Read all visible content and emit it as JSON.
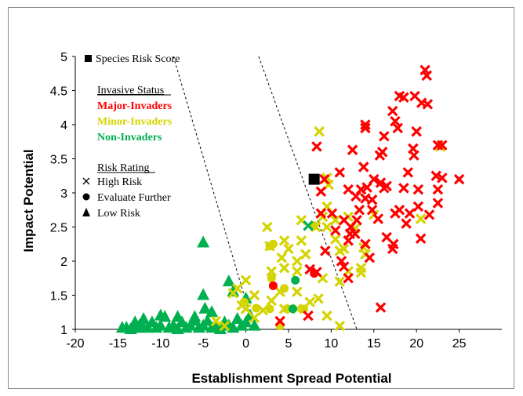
{
  "chart_data": {
    "type": "scatter",
    "title": "",
    "xlabel": "Establishment Spread Potential",
    "ylabel": "Impact Potential",
    "xlim": [
      -20,
      30
    ],
    "ylim": [
      1,
      5
    ],
    "xticks": [
      "-20",
      "-15",
      "-10",
      "-5",
      "0",
      "5",
      "10",
      "15",
      "20",
      "25"
    ],
    "yticks": [
      "1",
      "1.5",
      "2",
      "2.5",
      "3",
      "3.5",
      "4",
      "4.5",
      "5"
    ],
    "grid": false,
    "colors": {
      "major": "#ff0000",
      "minor": "#d4d400",
      "non": "#00b050",
      "black": "#000000"
    },
    "legend": {
      "species_risk_score": "Species Risk Score",
      "status_title": "Invasive Status",
      "status": [
        {
          "label": "Major-Invaders",
          "color": "#ff0000"
        },
        {
          "label": "Minor-Invaders",
          "color": "#d4d400"
        },
        {
          "label": "Non-Invaders",
          "color": "#00b050"
        }
      ],
      "rating_title": "Risk Rating",
      "ratings": [
        {
          "label": "High Risk",
          "marker": "x"
        },
        {
          "label": "Evaluate Further",
          "marker": "circle"
        },
        {
          "label": "Low Risk",
          "marker": "triangle"
        }
      ]
    },
    "threshold_lines": [
      {
        "from": [
          -8.5,
          5
        ],
        "to": [
          0.5,
          1.2
        ]
      },
      {
        "from": [
          1.5,
          5
        ],
        "to": [
          13,
          1
        ]
      }
    ],
    "species_risk_score_point": [
      8,
      3.2
    ],
    "points": {
      "major_x": [
        [
          21,
          4.8
        ],
        [
          21.2,
          4.72
        ],
        [
          19.8,
          4.42
        ],
        [
          20.6,
          4.32
        ],
        [
          21.3,
          4.3
        ],
        [
          18,
          4.42
        ],
        [
          18.5,
          4.4
        ],
        [
          17.2,
          4.2
        ],
        [
          17.5,
          4.05
        ],
        [
          14,
          4
        ],
        [
          14,
          3.95
        ],
        [
          16.2,
          3.83
        ],
        [
          17.8,
          3.95
        ],
        [
          20,
          3.9
        ],
        [
          19.6,
          3.65
        ],
        [
          19.7,
          3.55
        ],
        [
          22.5,
          3.7
        ],
        [
          23,
          3.7
        ],
        [
          12.5,
          3.63
        ],
        [
          15.7,
          3.55
        ],
        [
          16,
          3.6
        ],
        [
          13.8,
          3.38
        ],
        [
          8.3,
          3.68
        ],
        [
          11,
          3.3
        ],
        [
          15,
          3.2
        ],
        [
          16.5,
          3.1
        ],
        [
          19,
          3.3
        ],
        [
          22.3,
          3.25
        ],
        [
          23,
          3.22
        ],
        [
          25,
          3.2
        ],
        [
          9.2,
          3.2
        ],
        [
          8.8,
          3.02
        ],
        [
          12,
          3.05
        ],
        [
          13.5,
          3.05
        ],
        [
          14.2,
          3.08
        ],
        [
          15.8,
          3.15
        ],
        [
          16.2,
          3.07
        ],
        [
          18.5,
          3.07
        ],
        [
          20.2,
          3.05
        ],
        [
          22.5,
          3.05
        ],
        [
          12.9,
          2.95
        ],
        [
          14,
          2.92
        ],
        [
          14.8,
          2.9
        ],
        [
          13.3,
          2.75
        ],
        [
          10.1,
          2.7
        ],
        [
          11.5,
          2.6
        ],
        [
          12.3,
          2.5
        ],
        [
          13,
          2.6
        ],
        [
          12.2,
          2.4
        ],
        [
          12.8,
          2.4
        ],
        [
          14.8,
          2.75
        ],
        [
          15.5,
          2.62
        ],
        [
          17.5,
          2.7
        ],
        [
          18,
          2.75
        ],
        [
          19.2,
          2.7
        ],
        [
          20.2,
          2.8
        ],
        [
          22.5,
          2.85
        ],
        [
          21.5,
          2.68
        ],
        [
          18.8,
          2.55
        ],
        [
          8.8,
          2.7
        ],
        [
          10.5,
          2.45
        ],
        [
          12,
          2.3
        ],
        [
          14,
          2.25
        ],
        [
          16.5,
          2.35
        ],
        [
          20.5,
          2.33
        ],
        [
          17.3,
          2.25
        ],
        [
          17.2,
          2.18
        ],
        [
          9.3,
          2.15
        ],
        [
          11.2,
          2.0
        ],
        [
          14.5,
          2.05
        ],
        [
          7.5,
          1.88
        ],
        [
          8.3,
          1.84
        ],
        [
          11.5,
          1.92
        ],
        [
          12,
          1.75
        ],
        [
          4,
          1.12
        ],
        [
          7.3,
          1.2
        ],
        [
          15.8,
          1.32
        ]
      ],
      "minor_x": [
        [
          -1.5,
          1.53
        ],
        [
          -1,
          1.6
        ],
        [
          1,
          1.5
        ],
        [
          2.5,
          2.5
        ],
        [
          2.8,
          2.22
        ],
        [
          4.5,
          2.3
        ],
        [
          4.2,
          2.05
        ],
        [
          5,
          2.18
        ],
        [
          3,
          1.85
        ],
        [
          4.5,
          1.9
        ],
        [
          4,
          1.55
        ],
        [
          3,
          1.42
        ],
        [
          4.5,
          1.3
        ],
        [
          6,
          1.3
        ],
        [
          6,
          1.55
        ],
        [
          6,
          1.85
        ],
        [
          6,
          2.0
        ],
        [
          6.5,
          2.3
        ],
        [
          7,
          2.1
        ],
        [
          6.5,
          2.6
        ],
        [
          8.2,
          2.5
        ],
        [
          9,
          2.65
        ],
        [
          10.5,
          2.6
        ],
        [
          9.5,
          2.8
        ],
        [
          9.5,
          2.5
        ],
        [
          9.5,
          3.22
        ],
        [
          9.7,
          3.12
        ],
        [
          8.6,
          3.9
        ],
        [
          12,
          2.65
        ],
        [
          10.5,
          2.32
        ],
        [
          11,
          2.15
        ],
        [
          11.5,
          2.18
        ],
        [
          13.8,
          2.2
        ],
        [
          14,
          2.1
        ],
        [
          13.5,
          1.9
        ],
        [
          12,
          1.85
        ],
        [
          13.5,
          1.83
        ],
        [
          9,
          1.75
        ],
        [
          11,
          1.7
        ],
        [
          8.5,
          1.45
        ],
        [
          7.5,
          1.4
        ],
        [
          9.5,
          1.2
        ],
        [
          11,
          1.05
        ],
        [
          0,
          1.72
        ],
        [
          -0.5,
          1.35
        ],
        [
          0,
          1.3
        ],
        [
          2,
          1.28
        ],
        [
          1,
          1.17
        ],
        [
          -2.5,
          1.05
        ],
        [
          -3.5,
          1.12
        ],
        [
          20.5,
          2.62
        ],
        [
          22.8,
          3.68
        ],
        [
          15,
          2.68
        ],
        [
          12.8,
          2.48
        ]
      ],
      "minor_o": [
        [
          2.8,
          2.22
        ],
        [
          3.2,
          2.25
        ],
        [
          3,
          1.75
        ],
        [
          4.5,
          1.6
        ],
        [
          1.2,
          1.31
        ],
        [
          2.8,
          1.3
        ],
        [
          4.8,
          1.3
        ],
        [
          6.8,
          1.3
        ],
        [
          4,
          1.05
        ],
        [
          -0.2,
          1.4
        ],
        [
          8,
          2.52
        ]
      ],
      "major_o": [
        [
          3.2,
          1.64
        ],
        [
          8,
          1.82
        ]
      ],
      "non_o": [
        [
          5.8,
          1.72
        ],
        [
          5.5,
          1.3
        ]
      ],
      "non_x": [
        [
          7.3,
          2.52
        ]
      ],
      "non_tri": [
        [
          -5,
          2.27
        ],
        [
          -5,
          1.5
        ],
        [
          -4.8,
          1.3
        ],
        [
          -2,
          1.7
        ],
        [
          -1.5,
          1.55
        ],
        [
          0,
          1.45
        ],
        [
          -14.5,
          1.02
        ],
        [
          -14,
          1.02
        ],
        [
          -13.5,
          1.0
        ],
        [
          -13,
          1.02
        ],
        [
          -12.5,
          1.05
        ],
        [
          -12,
          1.02
        ],
        [
          -11.5,
          1.02
        ],
        [
          -11,
          1.1
        ],
        [
          -10.5,
          1.02
        ],
        [
          -10,
          1.05
        ],
        [
          -9.5,
          1.18
        ],
        [
          -9,
          1.02
        ],
        [
          -8.5,
          1.05
        ],
        [
          -8,
          1.0
        ],
        [
          -7.5,
          1.1
        ],
        [
          -7,
          1.02
        ],
        [
          -6.5,
          1.05
        ],
        [
          -6,
          1.12
        ],
        [
          -5.5,
          1.02
        ],
        [
          -5,
          1.05
        ],
        [
          -4.5,
          1.12
        ],
        [
          -4,
          1.02
        ],
        [
          -3.5,
          1.05
        ],
        [
          -3,
          1.0
        ],
        [
          -2.5,
          1.1
        ],
        [
          -2,
          1.05
        ],
        [
          -1.5,
          1.02
        ],
        [
          -1,
          1.15
        ],
        [
          -0.5,
          1.05
        ],
        [
          0,
          1.1
        ],
        [
          0.5,
          1.2
        ],
        [
          1,
          1.05
        ],
        [
          -12,
          1.15
        ],
        [
          -10,
          1.2
        ],
        [
          -6,
          1.18
        ],
        [
          -8,
          1.18
        ],
        [
          -4,
          1.25
        ],
        [
          -13,
          1.1
        ]
      ]
    }
  }
}
